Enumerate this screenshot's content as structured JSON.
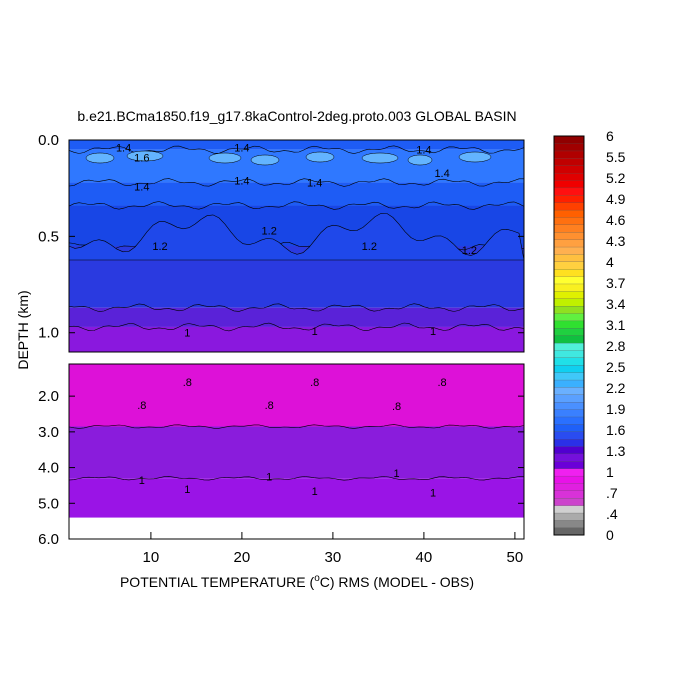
{
  "chart_data": {
    "type": "heatmap",
    "title": "b.e21.BCma1850.f19_g17.8kaControl-2deg.proto.003 GLOBAL BASIN",
    "xlabel": {
      "before": "POTENTIAL TEMPERATURE (",
      "sup": "o",
      "after": "C) RMS (MODEL - OBS)"
    },
    "ylabel": "DEPTH (km)",
    "xlim": [
      1,
      51
    ],
    "x_ticks": [
      "10",
      "20",
      "30",
      "40",
      "50"
    ],
    "x_tick_values": [
      10,
      20,
      30,
      40,
      50
    ],
    "panels": [
      {
        "name": "upper",
        "ylim": [
          0.0,
          1.1
        ],
        "y_ticks": [
          "0.0",
          "0.5",
          "1.0"
        ],
        "y_tick_values": [
          0.0,
          0.5,
          1.0
        ],
        "bands": [
          {
            "from": 0.0,
            "to": 0.05,
            "value": 1.5,
            "color": "#1e5cf5"
          },
          {
            "from": 0.05,
            "to": 0.22,
            "value": 1.55,
            "color": "#2f78ff"
          },
          {
            "from": 0.22,
            "to": 0.34,
            "value": 1.45,
            "color": "#1e5cf5"
          },
          {
            "from": 0.34,
            "to": 0.55,
            "value": 1.3,
            "color": "#1846e6"
          },
          {
            "from": 0.55,
            "to": 0.87,
            "value": 1.15,
            "color": "#2a3ae0"
          },
          {
            "from": 0.87,
            "to": 0.97,
            "value": 1.05,
            "color": "#5a22d8"
          },
          {
            "from": 0.97,
            "to": 1.1,
            "value": 0.95,
            "color": "#8a18de"
          }
        ],
        "contour_labels": [
          {
            "text": "1.4",
            "x": 7,
            "y": 0.04
          },
          {
            "text": "1.6",
            "x": 9,
            "y": 0.09
          },
          {
            "text": "1.4",
            "x": 20,
            "y": 0.04
          },
          {
            "text": "1.4",
            "x": 40,
            "y": 0.05
          },
          {
            "text": "1.4",
            "x": 9,
            "y": 0.24
          },
          {
            "text": "1.4",
            "x": 20,
            "y": 0.21
          },
          {
            "text": "1.4",
            "x": 28,
            "y": 0.22
          },
          {
            "text": "1.4",
            "x": 42,
            "y": 0.17
          },
          {
            "text": "1.2",
            "x": 11,
            "y": 0.55
          },
          {
            "text": "1.2",
            "x": 23,
            "y": 0.47
          },
          {
            "text": "1.2",
            "x": 34,
            "y": 0.55
          },
          {
            "text": "1.2",
            "x": 45,
            "y": 0.57
          },
          {
            "text": "1",
            "x": 14,
            "y": 1.0
          },
          {
            "text": "1",
            "x": 28,
            "y": 0.99
          },
          {
            "text": "1",
            "x": 41,
            "y": 0.99
          }
        ]
      },
      {
        "name": "lower",
        "ylim": [
          1.1,
          6.0
        ],
        "y_ticks": [
          "2.0",
          "3.0",
          "4.0",
          "5.0",
          "6.0"
        ],
        "y_tick_values": [
          2.0,
          3.0,
          4.0,
          5.0,
          6.0
        ],
        "bands": [
          {
            "from": 1.1,
            "to": 2.85,
            "value": 0.75,
            "color": "#dd11d8"
          },
          {
            "from": 2.85,
            "to": 4.3,
            "value": 0.95,
            "color": "#8a1cdc"
          },
          {
            "from": 4.3,
            "to": 5.4,
            "value": 0.95,
            "color": "#9a14e6"
          }
        ],
        "contour_labels": [
          {
            "text": ".8",
            "x": 14,
            "y": 1.6
          },
          {
            "text": ".8",
            "x": 28,
            "y": 1.6
          },
          {
            "text": ".8",
            "x": 42,
            "y": 1.6
          },
          {
            "text": ".8",
            "x": 9,
            "y": 2.25
          },
          {
            "text": ".8",
            "x": 23,
            "y": 2.25
          },
          {
            "text": ".8",
            "x": 37,
            "y": 2.28
          },
          {
            "text": "1",
            "x": 9,
            "y": 4.35
          },
          {
            "text": "1",
            "x": 23,
            "y": 4.25
          },
          {
            "text": "1",
            "x": 37,
            "y": 4.15
          },
          {
            "text": "1",
            "x": 14,
            "y": 4.6
          },
          {
            "text": "1",
            "x": 28,
            "y": 4.65
          },
          {
            "text": "1",
            "x": 41,
            "y": 4.7
          }
        ]
      }
    ],
    "colorbar": {
      "labels": [
        "6",
        "5.5",
        "5.2",
        "4.9",
        "4.6",
        "4.3",
        "4",
        "3.7",
        "3.4",
        "3.1",
        "2.8",
        "2.5",
        "2.2",
        "1.9",
        "1.6",
        "1.3",
        "1",
        ".7",
        ".4",
        "0"
      ],
      "colors_bottom_to_top": [
        "#666666",
        "#888888",
        "#aaaaaa",
        "#d0d0d0",
        "#cc44cc",
        "#d832d8",
        "#e020e0",
        "#e812e8",
        "#f020f0",
        "#6a00d8",
        "#7410dc",
        "#5000d0",
        "#2a30e8",
        "#2a4cf0",
        "#1f60f8",
        "#2a70ff",
        "#3a80ff",
        "#4a90ff",
        "#5aa0ff",
        "#6ab0ff",
        "#3ab0ff",
        "#40c8f8",
        "#10d0f0",
        "#20e0e8",
        "#40e8e0",
        "#50f0d8",
        "#10c040",
        "#20d040",
        "#30e030",
        "#60f040",
        "#90e020",
        "#c0f000",
        "#e0f000",
        "#f8f020",
        "#ffff30",
        "#ffe020",
        "#ffd040",
        "#ffc040",
        "#ffb050",
        "#ffa040",
        "#ff9030",
        "#ff8020",
        "#ff7010",
        "#ff6000",
        "#ff4000",
        "#ff2000",
        "#ff1010",
        "#f00000",
        "#e00000",
        "#d00000",
        "#c00000",
        "#b00000",
        "#a00000",
        "#900000"
      ]
    }
  }
}
